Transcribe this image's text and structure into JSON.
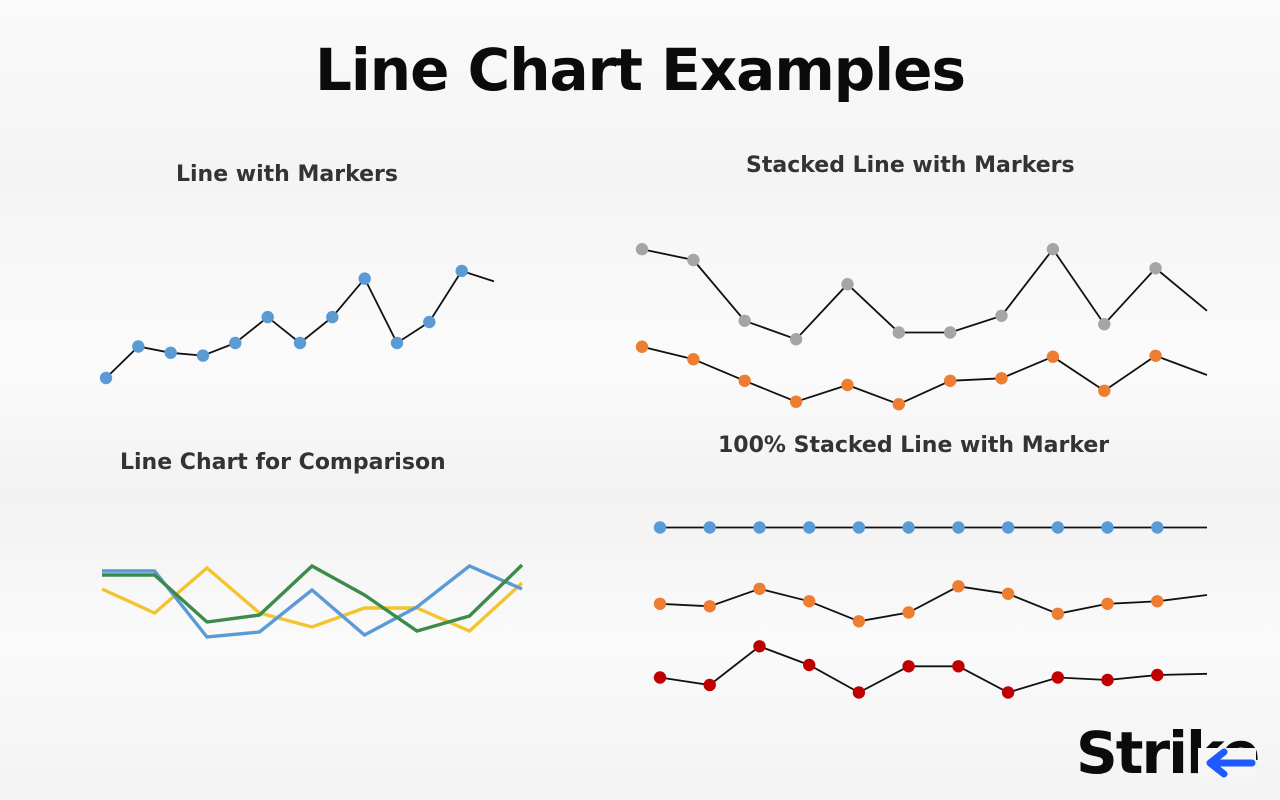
{
  "page_title": "Line Chart Examples",
  "brand": {
    "name": "Strike",
    "accent": "#1e5bff"
  },
  "colors": {
    "blue": "#5b9bd5",
    "gray": "#a5a5a5",
    "orange": "#ed7d31",
    "red": "#c00000",
    "yellow": "#f4c430",
    "green": "#3d8a4a",
    "line": "#111111"
  },
  "chart_data": [
    {
      "type": "line",
      "title": "Line with Markers",
      "markers": true,
      "series": [
        {
          "color": "#5b9bd5",
          "values": [
            1.0,
            5.5,
            4.6,
            4.2,
            6.0,
            9.7,
            6.0,
            9.7,
            15.2,
            6.0,
            9.0,
            16.3,
            14.8
          ]
        }
      ]
    },
    {
      "type": "line",
      "title": "Stacked Line with Markers",
      "markers": true,
      "series": [
        {
          "color": "#a5a5a5",
          "values": [
            17.7,
            16.4,
            9.1,
            6.9,
            13.5,
            7.7,
            7.7,
            9.7,
            17.7,
            8.7,
            15.4,
            10.3
          ]
        },
        {
          "color": "#ed7d31",
          "values": [
            6.0,
            4.5,
            1.9,
            -0.6,
            1.4,
            -0.9,
            1.9,
            2.2,
            4.8,
            0.7,
            4.9,
            2.6
          ]
        }
      ]
    },
    {
      "type": "line",
      "title": "Line Chart for Comparison",
      "markers": false,
      "series": [
        {
          "color": "#f4c430",
          "values": [
            5.6,
            3.2,
            7.7,
            3.2,
            1.8,
            3.7,
            3.7,
            1.4,
            6.2
          ]
        },
        {
          "color": "#5b9bd5",
          "values": [
            7.4,
            7.4,
            0.8,
            1.3,
            5.5,
            1.0,
            3.8,
            7.9,
            5.6
          ]
        },
        {
          "color": "#3d8a4a",
          "values": [
            7.0,
            7.0,
            2.3,
            3.0,
            7.9,
            5.0,
            1.4,
            2.9,
            8.0
          ]
        }
      ]
    },
    {
      "type": "line",
      "title": "100% Stacked Line with Marker",
      "markers": true,
      "series": [
        {
          "color": "#5b9bd5",
          "values": [
            14.2,
            14.2,
            14.2,
            14.2,
            14.2,
            14.2,
            14.2,
            14.2,
            14.2,
            14.2,
            14.2,
            14.2
          ]
        },
        {
          "color": "#ed7d31",
          "values": [
            8.1,
            7.9,
            9.3,
            8.3,
            6.7,
            7.4,
            9.5,
            8.9,
            7.3,
            8.1,
            8.3,
            8.8
          ]
        },
        {
          "color": "#c00000",
          "values": [
            2.2,
            1.6,
            4.7,
            3.2,
            1.0,
            3.1,
            3.1,
            1.0,
            2.2,
            2.0,
            2.4,
            2.5
          ]
        }
      ]
    }
  ]
}
